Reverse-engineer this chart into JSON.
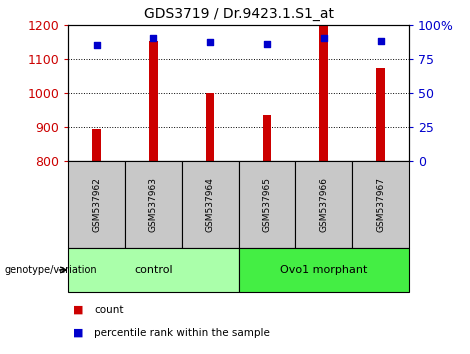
{
  "title": "GDS3719 / Dr.9423.1.S1_at",
  "samples": [
    "GSM537962",
    "GSM537963",
    "GSM537964",
    "GSM537965",
    "GSM537966",
    "GSM537967"
  ],
  "counts": [
    893,
    1152,
    1000,
    935,
    1196,
    1073
  ],
  "percentiles_pct": [
    85,
    90,
    87,
    86,
    90,
    88
  ],
  "groups": [
    {
      "label": "control",
      "indices": [
        0,
        1,
        2
      ],
      "color": "#aaffaa"
    },
    {
      "label": "Ovo1 morphant",
      "indices": [
        3,
        4,
        5
      ],
      "color": "#44ee44"
    }
  ],
  "ylim_left": [
    800,
    1200
  ],
  "ylim_right": [
    0,
    100
  ],
  "bar_color": "#cc0000",
  "dot_color": "#0000cc",
  "background_samples": "#c8c8c8",
  "left_tick_color": "#cc0000",
  "right_tick_color": "#0000cc",
  "legend_count_label": "count",
  "legend_pct_label": "percentile rank within the sample",
  "genotype_label": "genotype/variation",
  "bar_width": 0.15
}
